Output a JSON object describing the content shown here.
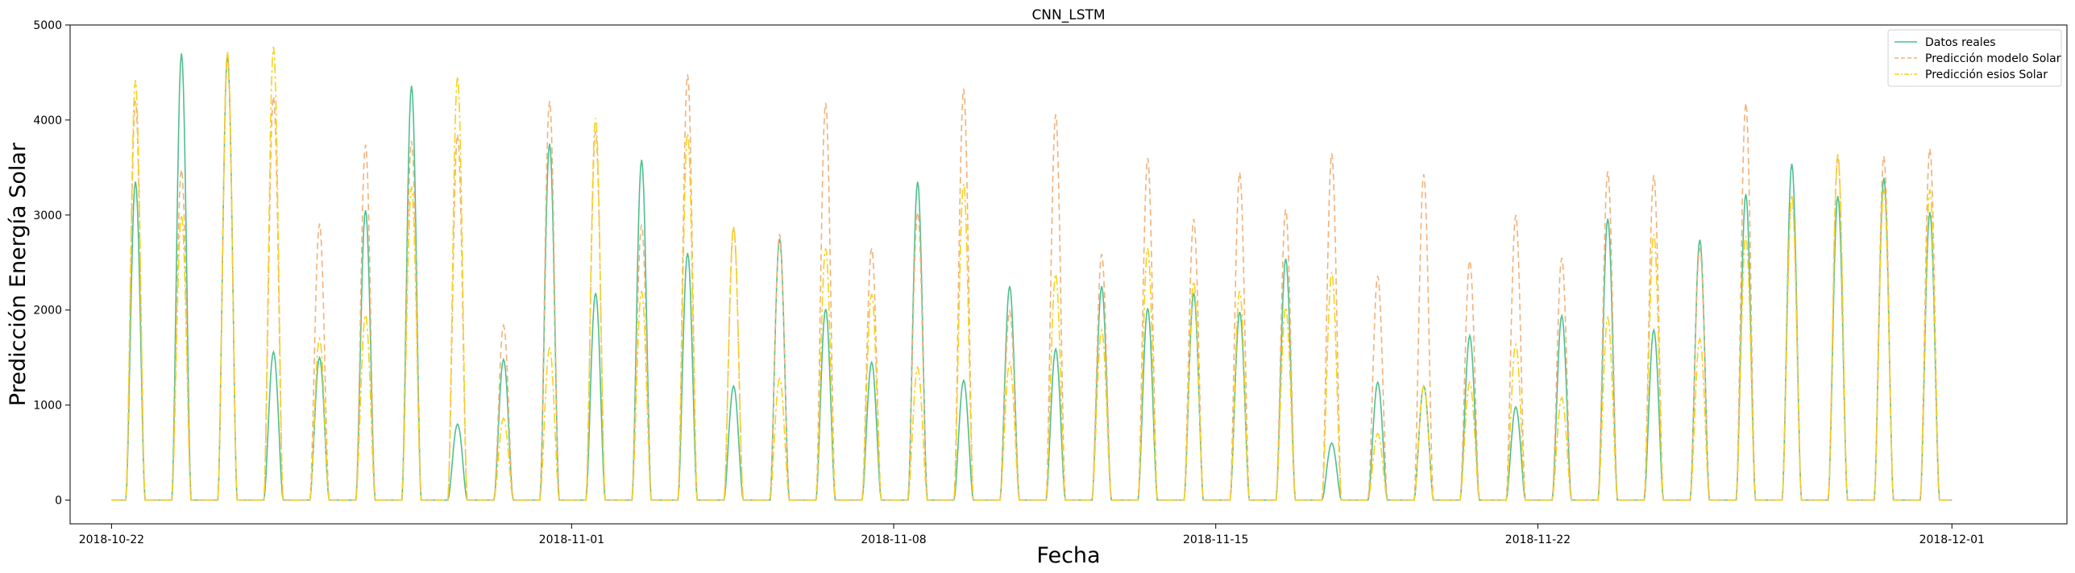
{
  "chart_data": {
    "type": "line",
    "title": "CNN_LSTM",
    "xlabel": "Fecha",
    "ylabel": "Predicción Energía Solar",
    "ylim": [
      -250,
      5000
    ],
    "y_ticks": [
      0,
      1000,
      2000,
      3000,
      4000,
      5000
    ],
    "x_tick_labels": [
      "2018-10-22",
      "2018-11-01",
      "2018-11-08",
      "2018-11-15",
      "2018-11-22",
      "2018-12-01"
    ],
    "x_tick_days": [
      0,
      10,
      17,
      24,
      31,
      40
    ],
    "x_start_label": "2018-10-22",
    "x_range_days": [
      -0.9,
      42.5
    ],
    "legend_position": "upper right",
    "series": [
      {
        "name": "Datos reales",
        "color": "#4fbf8f",
        "style": "solid",
        "daily_peaks": [
          3350,
          4700,
          4680,
          1560,
          1500,
          3050,
          4360,
          800,
          1480,
          3750,
          2180,
          3580,
          2600,
          1200,
          2750,
          2010,
          1450,
          3350,
          1260,
          2250,
          1590,
          2250,
          2020,
          2180,
          1980,
          2540,
          600,
          1240,
          1200,
          1730,
          980,
          1940,
          2960,
          1790,
          2740,
          3220,
          3540,
          3200,
          3390,
          3030
        ]
      },
      {
        "name": "Predicción modelo Solar",
        "color": "#f0b27a",
        "style": "dashed",
        "daily_peaks": [
          4200,
          3480,
          4680,
          4250,
          2910,
          3740,
          3780,
          3850,
          1840,
          4200,
          3880,
          2900,
          4480,
          2860,
          2800,
          4180,
          2650,
          3030,
          4330,
          1990,
          4060,
          2590,
          3600,
          2960,
          3450,
          3060,
          3650,
          2360,
          3430,
          2520,
          3000,
          2550,
          3460,
          3420,
          2650,
          4180,
          3200,
          3620,
          3620,
          3700
        ]
      },
      {
        "name": "Predicción esios Solar",
        "color": "#f7d21a",
        "style": "dashdot",
        "daily_peaks": [
          4420,
          3000,
          4720,
          4770,
          1700,
          1950,
          3300,
          4460,
          860,
          1600,
          4020,
          2200,
          3860,
          2880,
          1280,
          2650,
          2170,
          1400,
          3330,
          1450,
          2380,
          1790,
          2650,
          2300,
          2200,
          2030,
          2400,
          700,
          1200,
          1240,
          1640,
          1080,
          1920,
          2800,
          1700,
          2780,
          3200,
          3640,
          3270,
          3270
        ]
      }
    ]
  }
}
